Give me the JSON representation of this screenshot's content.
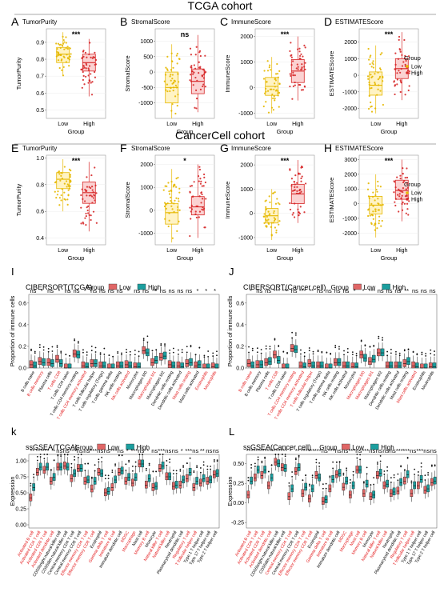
{
  "cohort_titles": [
    "TCGA cohort",
    "CancerCell cohort"
  ],
  "group_legend": {
    "title": "Group",
    "labels": [
      "Low",
      "High"
    ]
  },
  "colors": {
    "low": "#e6b800",
    "high": "#d62728",
    "low_fill": "#fff3c4",
    "high_fill": "#fbd2d2",
    "bar_low": "#e06666",
    "bar_high": "#1b9e9e",
    "red_label": "#e31a1c"
  },
  "chart_data": [
    {
      "type": "box",
      "panel_letter": "A",
      "title": "TumorPurity",
      "xlabel": "Group",
      "ylabel": "TumorPurity",
      "categories": [
        "Low",
        "High"
      ],
      "yticks": [
        "0.5",
        "0.6",
        "0.7",
        "0.8",
        "0.9"
      ],
      "ylim": [
        0.45,
        0.98
      ],
      "significance": "***",
      "series": [
        {
          "name": "Low",
          "q1": 0.78,
          "median": 0.83,
          "q3": 0.87,
          "min": 0.7,
          "max": 0.96
        },
        {
          "name": "High",
          "q1": 0.73,
          "median": 0.78,
          "q3": 0.83,
          "min": 0.58,
          "max": 0.92
        }
      ]
    },
    {
      "type": "box",
      "panel_letter": "B",
      "title": "StromalScore",
      "xlabel": "Group",
      "ylabel": "StromalScore",
      "categories": [
        "Low",
        "High"
      ],
      "yticks": [
        "-1000",
        "-500",
        "0",
        "500",
        "1000"
      ],
      "ylim": [
        -1500,
        1400
      ],
      "significance": "ns",
      "series": [
        {
          "name": "Low",
          "q1": -1000,
          "median": -500,
          "q3": 0,
          "min": -1500,
          "max": 900
        },
        {
          "name": "High",
          "q1": -700,
          "median": -300,
          "q3": 100,
          "min": -1300,
          "max": 1200
        }
      ]
    },
    {
      "type": "box",
      "panel_letter": "C",
      "title": "ImmuneScore",
      "xlabel": "Group",
      "ylabel": "ImmuneScore",
      "categories": [
        "Low",
        "High"
      ],
      "yticks": [
        "-1000",
        "0",
        "1000",
        "2000"
      ],
      "ylim": [
        -1200,
        2300
      ],
      "significance": "***",
      "series": [
        {
          "name": "Low",
          "q1": -300,
          "median": 50,
          "q3": 400,
          "min": -1000,
          "max": 1200
        },
        {
          "name": "High",
          "q1": 200,
          "median": 650,
          "q3": 1100,
          "min": -500,
          "max": 2000
        }
      ]
    },
    {
      "type": "box",
      "panel_letter": "D",
      "title": "ESTIMATEScore",
      "xlabel": "Group",
      "ylabel": "ESTIMATEScore",
      "categories": [
        "Low",
        "High"
      ],
      "yticks": [
        "-2000",
        "-1000",
        "0",
        "1000",
        "2000"
      ],
      "ylim": [
        -2600,
        2800
      ],
      "significance": "***",
      "series": [
        {
          "name": "Low",
          "q1": -1200,
          "median": -600,
          "q3": 200,
          "min": -2300,
          "max": 1800
        },
        {
          "name": "High",
          "q1": -200,
          "median": 400,
          "q3": 1000,
          "min": -1500,
          "max": 2600
        }
      ]
    },
    {
      "type": "box",
      "panel_letter": "E",
      "title": "TumorPurity",
      "xlabel": "Group",
      "ylabel": "TumorPurity",
      "categories": [
        "Low",
        "High"
      ],
      "yticks": [
        "0.4",
        "0.6",
        "0.8",
        "1.0"
      ],
      "ylim": [
        0.35,
        1.02
      ],
      "significance": "***",
      "series": [
        {
          "name": "Low",
          "q1": 0.77,
          "median": 0.84,
          "q3": 0.89,
          "min": 0.6,
          "max": 0.99
        },
        {
          "name": "High",
          "q1": 0.66,
          "median": 0.74,
          "q3": 0.82,
          "min": 0.45,
          "max": 0.97
        }
      ]
    },
    {
      "type": "box",
      "panel_letter": "F",
      "title": "StromalScore",
      "xlabel": "Group",
      "ylabel": "StromalScore",
      "categories": [
        "Low",
        "High"
      ],
      "yticks": [
        "-1000",
        "0",
        "1000",
        "2000"
      ],
      "ylim": [
        -1500,
        2400
      ],
      "significance": "*",
      "series": [
        {
          "name": "Low",
          "q1": -600,
          "median": -100,
          "q3": 300,
          "min": -1400,
          "max": 1800
        },
        {
          "name": "High",
          "q1": -200,
          "median": 150,
          "q3": 600,
          "min": -1200,
          "max": 2000
        }
      ]
    },
    {
      "type": "box",
      "panel_letter": "G",
      "title": "ImmuneScore",
      "xlabel": "Group",
      "ylabel": "ImmuneScore",
      "categories": [
        "Low",
        "High"
      ],
      "yticks": [
        "-1000",
        "0",
        "1000",
        "2000"
      ],
      "ylim": [
        -1300,
        2400
      ],
      "significance": "***",
      "series": [
        {
          "name": "Low",
          "q1": -400,
          "median": -100,
          "q3": 200,
          "min": -1100,
          "max": 1000
        },
        {
          "name": "High",
          "q1": 400,
          "median": 800,
          "q3": 1200,
          "min": -400,
          "max": 2200
        }
      ]
    },
    {
      "type": "box",
      "panel_letter": "H",
      "title": "ESTIMATEScore",
      "xlabel": "Group",
      "ylabel": "ESTIMATEScore",
      "categories": [
        "Low",
        "High"
      ],
      "yticks": [
        "-2000",
        "-1000",
        "0",
        "1000",
        "2000",
        "3000"
      ],
      "ylim": [
        -2800,
        3300
      ],
      "significance": "***",
      "series": [
        {
          "name": "Low",
          "q1": -700,
          "median": -100,
          "q3": 500,
          "min": -2300,
          "max": 2000
        },
        {
          "name": "High",
          "q1": 300,
          "median": 900,
          "q3": 1600,
          "min": -1200,
          "max": 3000
        }
      ]
    },
    {
      "type": "box",
      "panel_letter": "I",
      "title": "CIBERSORT(TCGA)",
      "ylabel": "Proportion of immune cells",
      "yticks": [
        "0.0",
        "0.2",
        "0.4",
        "0.6"
      ],
      "ylim": [
        0,
        0.68
      ],
      "legend_title": "Group",
      "categories": [
        "B cells naive",
        "B cells memory",
        "Plasma cells",
        "T cells CD8",
        "T cells CD4 naive",
        "T cells CD4 memory resting",
        "T cells CD4 memory activated",
        "T cells follicular helper",
        "T cells regulatory (Tregs)",
        "T cells gamma delta",
        "NK cells resting",
        "NK cells activated",
        "Monocytes",
        "Macrophages M0",
        "Macrophages M1",
        "Macrophages M2",
        "Dendritic cells resting",
        "Dendritic cells activated",
        "Mast cells resting",
        "Mast cells activated",
        "Eosinophils",
        "Neutrophils"
      ],
      "red_labels": [
        "B cells memory",
        "T cells CD8",
        "T cells CD4 memory activated",
        "NK cells activated",
        "Macrophages M1",
        "Mast cells resting",
        "Eosinophils",
        "Neutrophils"
      ],
      "significance": [
        "ns",
        "*",
        "ns",
        "*",
        "ns",
        "ns",
        "*",
        "ns",
        "ns",
        "ns",
        "ns",
        "*",
        "ns",
        "ns",
        "**",
        "ns",
        "ns",
        "ns",
        "ns",
        "*",
        "*",
        "*"
      ],
      "series": [
        {
          "name": "Low",
          "medians": [
            0.03,
            0.06,
            0.05,
            0.08,
            0.0,
            0.13,
            0.02,
            0.04,
            0.02,
            0.0,
            0.02,
            0.03,
            0.01,
            0.16,
            0.05,
            0.1,
            0.03,
            0.02,
            0.04,
            0.02,
            0.0,
            0.01
          ]
        },
        {
          "name": "High",
          "medians": [
            0.02,
            0.05,
            0.04,
            0.04,
            0.0,
            0.12,
            0.01,
            0.04,
            0.02,
            0.0,
            0.02,
            0.02,
            0.01,
            0.14,
            0.07,
            0.11,
            0.02,
            0.01,
            0.05,
            0.03,
            0.0,
            0.0
          ]
        }
      ]
    },
    {
      "type": "box",
      "panel_letter": "J",
      "title": "CIBERSORT(Cancer cell)",
      "ylabel": "Proportion of immune cells",
      "yticks": [
        "0.0",
        "0.2",
        "0.4",
        "0.6"
      ],
      "ylim": [
        0,
        0.68
      ],
      "legend_title": "Group",
      "categories": [
        "B cells naive",
        "B cells memory",
        "Plasma cells",
        "T cells CD8",
        "T cells CD4 naive",
        "T cells CD4 memory resting",
        "T cells CD4 memory activated",
        "T cells follicular helper",
        "T cells regulatory (Tregs)",
        "T cells gamma delta",
        "NK cells resting",
        "NK cells activated",
        "Monocytes",
        "Macrophages M0",
        "Macrophages M1",
        "Macrophages M2",
        "Dendritic cells resting",
        "Dendritic cells activated",
        "Mast cells resting",
        "Mast cells activated",
        "Eosinophils",
        "Neutrophils"
      ],
      "red_labels": [
        "B cells naive",
        "T cells CD8",
        "T cells CD4 memory resting",
        "T cells CD4 memory activated",
        "T cells follicular helper",
        "Macrophages M0",
        "Macrophages M1",
        "Mast cells activated"
      ],
      "significance": [
        "*",
        "ns",
        "ns",
        "***",
        "***",
        "ns",
        "***",
        "**",
        "ns",
        "ns",
        "ns",
        "ns",
        "*",
        "*",
        "***",
        "ns",
        "ns",
        "ns",
        "**",
        "ns",
        "ns",
        "ns"
      ],
      "series": [
        {
          "name": "Low",
          "medians": [
            0.04,
            0.03,
            0.05,
            0.12,
            0.0,
            0.18,
            0.02,
            0.04,
            0.02,
            0.0,
            0.05,
            0.02,
            0.01,
            0.12,
            0.06,
            0.14,
            0.02,
            0.02,
            0.04,
            0.02,
            0.0,
            0.01
          ]
        },
        {
          "name": "High",
          "medians": [
            0.02,
            0.03,
            0.06,
            0.07,
            0.0,
            0.17,
            0.01,
            0.02,
            0.02,
            0.0,
            0.05,
            0.02,
            0.01,
            0.09,
            0.08,
            0.14,
            0.02,
            0.02,
            0.06,
            0.01,
            0.0,
            0.01
          ]
        }
      ]
    },
    {
      "type": "box",
      "panel_letter": "k",
      "title": "ssGSEA(TCGA)",
      "ylabel": "Expression",
      "yticks": [
        "0.00",
        "0.25",
        "0.50",
        "0.75",
        "1.00"
      ],
      "ylim": [
        -0.05,
        1.1
      ],
      "legend_title": "Group",
      "categories": [
        "Activated B cell",
        "Activated CD4 T cell",
        "Activated CD8 T cell",
        "Activated dendritic cell",
        "CD56bright natural killer cell",
        "CD56dim natural killer cell",
        "Central memory CD4 T cell",
        "Central memory CD8 T cell",
        "Effector memory CD4 T cell",
        "Effector memory CD8 T cell",
        "Eosinophil",
        "Gamma delta T cell",
        "Immature B cell",
        "Immature dendritic cell",
        "MDSC",
        "Macrophage",
        "Mast cell",
        "Memory B cell",
        "Monocyte",
        "Natural killer T cell",
        "Natural killer cell",
        "Neutrophil",
        "Plasmacytoid dendritic cell",
        "Regulatory T cell",
        "T follicular helper cell",
        "Type 1 T helper cell",
        "Type 17 T helper cell",
        "Type 2 T helper cell"
      ],
      "red_labels": [
        "Activated B cell",
        "Activated CD4 T cell",
        "Activated CD8 T cell",
        "Activated dendritic cell",
        "Effector memory CD4 T cell",
        "Effector memory CD8 T cell",
        "Gamma delta T cell",
        "Immature B cell",
        "MDSC",
        "Macrophage",
        "Memory B cell",
        "Natural killer T cell",
        "Natural killer cell",
        "Regulatory T cell",
        "T follicular helper cell"
      ],
      "significance": [
        "**",
        "***",
        "***",
        "*",
        "ns",
        "ns",
        "***",
        "ns",
        "ns",
        "***",
        "ns",
        "ns",
        "***",
        "ns",
        "*",
        "***",
        "ns",
        "*",
        "ns",
        "***",
        "ns",
        "ns",
        "*",
        "***",
        "ns",
        "**",
        "ns",
        "ns"
      ],
      "series": [
        {
          "name": "Low",
          "medians": [
            0.42,
            0.82,
            0.85,
            0.68,
            0.9,
            0.92,
            0.72,
            0.88,
            0.68,
            0.56,
            0.82,
            0.5,
            0.58,
            0.82,
            0.68,
            0.65,
            0.95,
            0.62,
            0.58,
            0.88,
            0.75,
            0.6,
            0.62,
            0.72,
            0.58,
            0.65,
            0.68,
            0.78
          ]
        },
        {
          "name": "High",
          "medians": [
            0.58,
            0.9,
            0.9,
            0.74,
            0.9,
            0.9,
            0.8,
            0.88,
            0.7,
            0.68,
            0.8,
            0.52,
            0.7,
            0.84,
            0.74,
            0.74,
            0.95,
            0.72,
            0.6,
            0.92,
            0.75,
            0.62,
            0.7,
            0.82,
            0.68,
            0.72,
            0.7,
            0.8
          ]
        }
      ]
    },
    {
      "type": "box",
      "panel_letter": "L",
      "title": "ssGSEA(Cancer cell)",
      "ylabel": "Expression",
      "yticks": [
        "-0.25",
        "0.00",
        "0.25",
        "0.50"
      ],
      "ylim": [
        -0.32,
        0.62
      ],
      "legend_title": "Group",
      "categories": [
        "Activated B cell",
        "Activated CD4 T cell",
        "Activated CD8 T cell",
        "Activated dendritic cell",
        "CD56bright natural killer cell",
        "CD56dim natural killer cell",
        "Central memory CD4 T cell",
        "Central memory CD8 T cell",
        "Effector memory CD4 T cell",
        "Effector memory CD8 T cell",
        "Eosinophil",
        "Gamma delta T cell",
        "Immature B cell",
        "Immature dendritic cell",
        "MDSC",
        "Macrophage",
        "Mast cell",
        "Memory B cell",
        "Monocyte",
        "Natural killer T cell",
        "Natural killer cell",
        "Neutrophil",
        "Plasmacytoid dendritic cell",
        "Regulatory T cell",
        "T follicular helper cell",
        "Type 1 T helper cell",
        "Type 17 T helper cell",
        "Type 2 T helper cell"
      ],
      "red_labels": [
        "Activated B cell",
        "Activated CD4 T cell",
        "Activated CD8 T cell",
        "Activated dendritic cell",
        "Central memory CD4 T cell",
        "Effector memory CD4 T cell",
        "Effector memory CD8 T cell",
        "Gamma delta T cell",
        "Immature B cell",
        "MDSC",
        "Macrophage",
        "Mast cell",
        "Memory B cell",
        "Natural killer T cell",
        "Natural killer cell",
        "Regulatory T cell",
        "T follicular helper cell"
      ],
      "significance": [
        "***",
        "***",
        "***",
        "***",
        "***",
        "***",
        "*",
        "**",
        "***",
        "***",
        "***",
        "ns",
        "***",
        "ns",
        "ns",
        "***",
        "ns",
        "***",
        "ns",
        "ns",
        "ns",
        "ns",
        "***",
        "***",
        "ns",
        "***",
        "ns",
        "ns"
      ],
      "series": [
        {
          "name": "Low",
          "medians": [
            0.1,
            0.32,
            0.35,
            0.22,
            0.52,
            0.45,
            0.08,
            0.4,
            0.12,
            0.05,
            0.35,
            0.02,
            0.18,
            0.36,
            0.2,
            0.1,
            0.42,
            0.12,
            0.08,
            0.35,
            0.22,
            0.12,
            0.15,
            0.28,
            0.12,
            0.22,
            0.16,
            0.26
          ]
        },
        {
          "name": "High",
          "medians": [
            0.28,
            0.42,
            0.42,
            0.32,
            0.5,
            0.44,
            0.18,
            0.45,
            0.2,
            0.18,
            0.32,
            0.04,
            0.3,
            0.38,
            0.28,
            0.22,
            0.42,
            0.24,
            0.1,
            0.38,
            0.24,
            0.14,
            0.26,
            0.36,
            0.22,
            0.3,
            0.18,
            0.28
          ]
        }
      ]
    }
  ]
}
